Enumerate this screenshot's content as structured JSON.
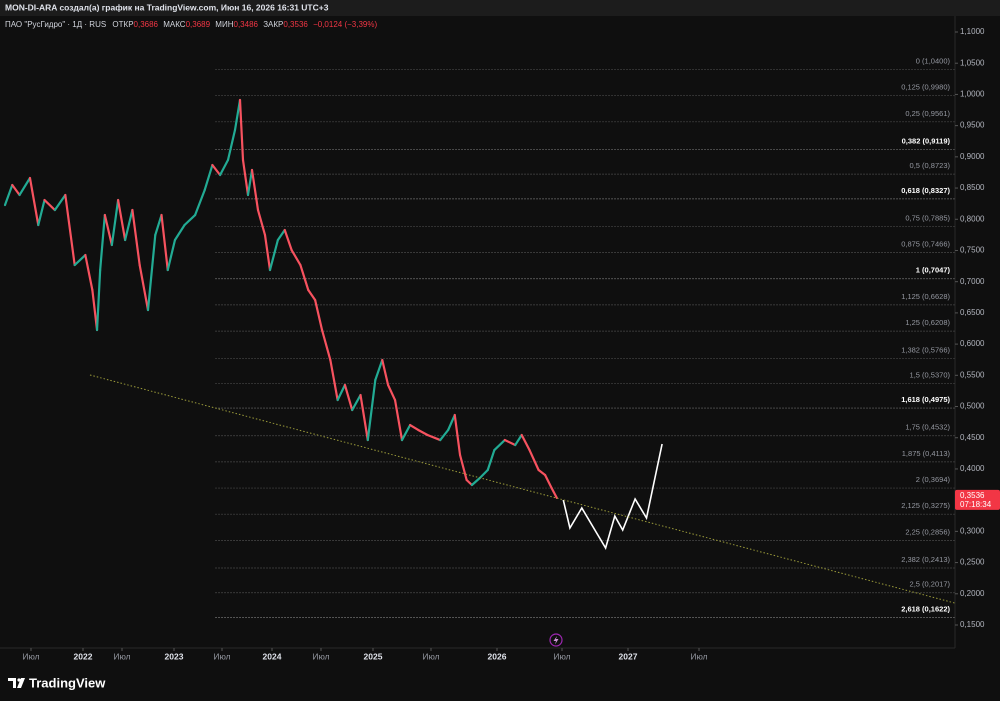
{
  "header": {
    "attribution": "MON-DI-ARA создал(а) график на TradingView.com, Июн 16, 2026 16:31 UTC+3"
  },
  "legend": {
    "symbol": "ПАО \"РусГидро\" · 1Д · RUS",
    "open_label": "ОТКР",
    "open": "0,3686",
    "high_label": "МАКС",
    "high": "0,3689",
    "low_label": "МИН",
    "low": "0,3486",
    "close_label": "ЗАКР",
    "close": "0,3536",
    "change": "−0,0124 (−3,39%)"
  },
  "price_tag": {
    "price": "0,3536",
    "countdown": "07:18:34"
  },
  "footer": {
    "brand": "TradingView"
  },
  "chart_data": {
    "type": "line",
    "ylim": [
      0.15,
      1.1
    ],
    "yticks": [
      {
        "value": 1.1,
        "label": "1,1000"
      },
      {
        "value": 1.05,
        "label": "1,0500"
      },
      {
        "value": 1.0,
        "label": "1,0000"
      },
      {
        "value": 0.95,
        "label": "0,9500"
      },
      {
        "value": 0.9,
        "label": "0,9000"
      },
      {
        "value": 0.85,
        "label": "0,8500"
      },
      {
        "value": 0.8,
        "label": "0,8000"
      },
      {
        "value": 0.75,
        "label": "0,7500"
      },
      {
        "value": 0.7,
        "label": "0,7000"
      },
      {
        "value": 0.65,
        "label": "0,6500"
      },
      {
        "value": 0.6,
        "label": "0,6000"
      },
      {
        "value": 0.55,
        "label": "0,5500"
      },
      {
        "value": 0.5,
        "label": "0,5000"
      },
      {
        "value": 0.45,
        "label": "0,4500"
      },
      {
        "value": 0.4,
        "label": "0,4000"
      },
      {
        "value": 0.35,
        "label": "0,3500"
      },
      {
        "value": 0.3,
        "label": "0,3000"
      },
      {
        "value": 0.25,
        "label": "0,2500"
      },
      {
        "value": 0.2,
        "label": "0,2000"
      },
      {
        "value": 0.15,
        "label": "0,1500"
      }
    ],
    "xticks": [
      {
        "value": 2021.5,
        "label": "Июл"
      },
      2022,
      {
        "value": 2022.5,
        "label": "Июл"
      },
      2023,
      {
        "value": 2023.5,
        "label": "Июл"
      },
      2024,
      {
        "value": 2024.5,
        "label": "Июл"
      },
      2025,
      {
        "value": 2025.5,
        "label": "Июл"
      },
      2026,
      {
        "value": 2026.5,
        "label": "Июл"
      },
      2027,
      {
        "value": 2027.5,
        "label": "Июл"
      }
    ],
    "grid": false,
    "fib_start": 2023.43,
    "fib_levels": [
      {
        "label": "0 (1,0400)",
        "value": 1.04,
        "bold": false
      },
      {
        "label": "0,125 (0,9980)",
        "value": 0.998,
        "bold": false
      },
      {
        "label": "0,25 (0,9561)",
        "value": 0.9561,
        "bold": false
      },
      {
        "label": "0,382 (0,9119)",
        "value": 0.9119,
        "bold": true
      },
      {
        "label": "0,5 (0,8723)",
        "value": 0.8723,
        "bold": false
      },
      {
        "label": "0,618 (0,8327)",
        "value": 0.8327,
        "bold": true
      },
      {
        "label": "0,75 (0,7885)",
        "value": 0.7885,
        "bold": false
      },
      {
        "label": "0,875 (0,7466)",
        "value": 0.7466,
        "bold": false
      },
      {
        "label": "1 (0,7047)",
        "value": 0.7047,
        "bold": true
      },
      {
        "label": "1,125 (0,6628)",
        "value": 0.6628,
        "bold": false
      },
      {
        "label": "1,25 (0,6208)",
        "value": 0.6208,
        "bold": false
      },
      {
        "label": "1,382 (0,5766)",
        "value": 0.5766,
        "bold": false
      },
      {
        "label": "1,5 (0,5370)",
        "value": 0.537,
        "bold": false
      },
      {
        "label": "1,618 (0,4975)",
        "value": 0.4975,
        "bold": true
      },
      {
        "label": "1,75 (0,4532)",
        "value": 0.4532,
        "bold": false
      },
      {
        "label": "1,875 (0,4113)",
        "value": 0.4113,
        "bold": false
      },
      {
        "label": "2 (0,3694)",
        "value": 0.3694,
        "bold": false
      },
      {
        "label": "2,125 (0,3275)",
        "value": 0.3275,
        "bold": false
      },
      {
        "label": "2,25 (0,2856)",
        "value": 0.2856,
        "bold": false
      },
      {
        "label": "2,382 (0,2413)",
        "value": 0.2413,
        "bold": false
      },
      {
        "label": "2,5 (0,2017)",
        "value": 0.2017,
        "bold": false
      },
      {
        "label": "2,618 (0,1622)",
        "value": 0.1622,
        "bold": true
      }
    ],
    "series": [
      {
        "up_color": "#22ab94",
        "down_color": "#f7525f",
        "style": "price",
        "x": [
          2021.25,
          2021.32,
          2021.39,
          2021.49,
          2021.57,
          2021.63,
          2021.73,
          2021.83,
          2021.92,
          2022.03,
          2022.12,
          2022.18,
          2022.22,
          2022.28,
          2022.37,
          2022.45,
          2022.53,
          2022.6,
          2022.67,
          2022.75,
          2022.82,
          2022.88,
          2022.94,
          2023.01,
          2023.11,
          2023.22,
          2023.32,
          2023.4,
          2023.48,
          2023.56,
          2023.63,
          2023.68,
          2023.71,
          2023.76,
          2023.8,
          2023.86,
          2023.93,
          2023.98,
          2024.06,
          2024.13,
          2024.2,
          2024.29,
          2024.37,
          2024.44,
          2024.51,
          2024.59,
          2024.66,
          2024.73,
          2024.8,
          2024.88,
          2024.95,
          2025.02,
          2025.08,
          2025.13,
          2025.19,
          2025.25,
          2025.32,
          2025.39,
          2025.47,
          2025.57,
          2025.63,
          2025.68,
          2025.72,
          2025.77,
          2025.81,
          2025.87,
          2025.93,
          2025.98,
          2026.06,
          2026.14,
          2026.19,
          2026.25,
          2026.32,
          2026.37,
          2026.42,
          2026.46
        ],
        "values": [
          0.8228,
          0.8549,
          0.8389,
          0.8661,
          0.7908,
          0.8308,
          0.8148,
          0.8389,
          0.7267,
          0.7427,
          0.6867,
          0.6226,
          0.7187,
          0.8068,
          0.7588,
          0.8308,
          0.7668,
          0.8148,
          0.7267,
          0.6546,
          0.7748,
          0.8068,
          0.7187,
          0.7668,
          0.7908,
          0.8068,
          0.8469,
          0.8869,
          0.8709,
          0.8949,
          0.943,
          0.9911,
          0.8949,
          0.8389,
          0.8789,
          0.8148,
          0.7748,
          0.7187,
          0.7668,
          0.7828,
          0.7507,
          0.7267,
          0.6867,
          0.6706,
          0.6226,
          0.5745,
          0.5104,
          0.5345,
          0.4944,
          0.5184,
          0.4463,
          0.5425,
          0.5745,
          0.5345,
          0.5104,
          0.4463,
          0.4704,
          0.4624,
          0.4544,
          0.4463,
          0.4624,
          0.4864,
          0.4223,
          0.3823,
          0.3743,
          0.3855,
          0.3983,
          0.4303,
          0.4463,
          0.4383,
          0.4544,
          0.4303,
          0.3983,
          0.3903,
          0.3695,
          0.3536
        ]
      },
      {
        "color": "#ffffff",
        "style": "solid",
        "x": [
          2026.51,
          2026.56,
          2026.65,
          2026.83,
          2026.9,
          2026.96,
          2027.05,
          2027.13,
          2027.24
        ],
        "values": [
          0.3502,
          0.3054,
          0.3374,
          0.2733,
          0.3246,
          0.3022,
          0.3519,
          0.3214,
          0.44
        ]
      },
      {
        "color": "#9a9a3a",
        "style": "dotted",
        "x": [
          2022.09,
          2029.3
        ],
        "values": [
          0.5505,
          0.1852
        ]
      }
    ]
  }
}
